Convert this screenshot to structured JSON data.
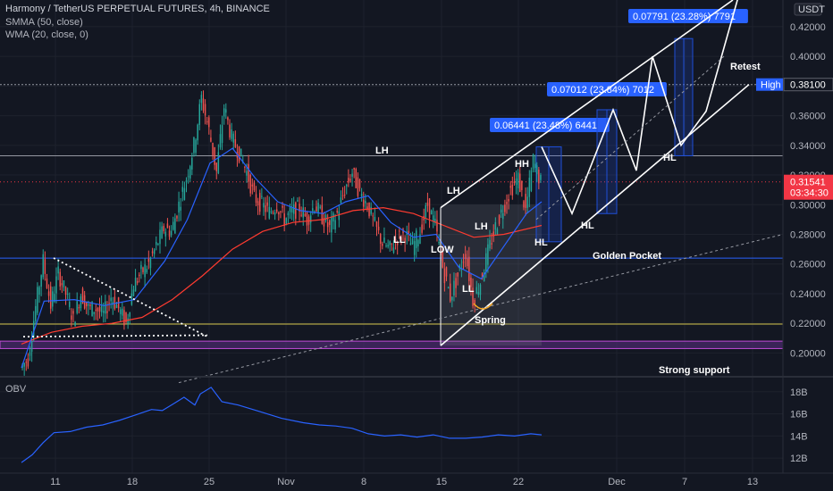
{
  "header": {
    "title": "Harmony / TetherUS PERPETUAL FUTURES, 4h, BINANCE",
    "indicator_1": "SMMA (50, close)",
    "indicator_2": "WMA (20, close, 0)",
    "currency": "USDT"
  },
  "obv_label": "OBV",
  "colors": {
    "background": "#131722",
    "up_candle": "#26a69a",
    "down_candle": "#ef5350",
    "smma": "#ff3b30",
    "wma": "#2962ff",
    "obv": "#2962ff",
    "price_marker": "#f23645",
    "high_marker": "#2962ff",
    "range_box": "#1f4fd8",
    "support_band": "#4a2a6b",
    "golden_pocket_line": "#2962ff",
    "yellow_line": "#d4c44a"
  },
  "chart_data": [
    {
      "type": "candlestick",
      "title": "Harmony / TetherUS PERPETUAL FUTURES, 4h, BINANCE",
      "y_axis_ticks": [
        0.2,
        0.22,
        0.24,
        0.26,
        0.28,
        0.3,
        0.32,
        0.34,
        0.36,
        0.38,
        0.4,
        0.42
      ],
      "ylim": [
        0.184,
        0.438
      ],
      "x_ticks": [
        "11",
        "18",
        "25",
        "Nov",
        "8",
        "15",
        "22",
        "Dec",
        "7",
        "13"
      ],
      "last_price": "0.31541",
      "countdown": "03:34:30",
      "high_label": "High",
      "high_price": "0.38100",
      "grid": true,
      "annotations": {
        "swing_labels": [
          "LH",
          "LL",
          "LH",
          "LOW",
          "LH",
          "LL",
          "HH",
          "HL",
          "Spring"
        ],
        "projection_labels": [
          "HL",
          "HL"
        ],
        "text_labels": [
          "Retest",
          "Golden Pocket",
          "Strong support"
        ],
        "measure_boxes": [
          "0.06441 (23.48%) 6441",
          "0.07012 (23.84%) 7012",
          "0.07791 (23.28%) 7791"
        ]
      },
      "levels": {
        "upper_grey_line": 0.333,
        "high_line": 0.381,
        "golden_pocket": 0.264,
        "yellow_line": 0.2195,
        "support_band": [
          0.203,
          0.208
        ]
      },
      "price_path": [
        [
          0,
          0.19
        ],
        [
          1,
          0.196
        ],
        [
          2,
          0.231
        ],
        [
          3,
          0.262
        ],
        [
          4,
          0.232
        ],
        [
          5,
          0.254
        ],
        [
          6,
          0.24
        ],
        [
          7,
          0.222
        ],
        [
          8,
          0.24
        ],
        [
          9,
          0.23
        ],
        [
          10,
          0.23
        ],
        [
          11,
          0.226
        ],
        [
          12,
          0.238
        ],
        [
          13,
          0.23
        ],
        [
          14,
          0.22
        ],
        [
          15,
          0.246
        ],
        [
          16,
          0.254
        ],
        [
          17,
          0.26
        ],
        [
          18,
          0.272
        ],
        [
          19,
          0.284
        ],
        [
          20,
          0.282
        ],
        [
          21,
          0.3
        ],
        [
          22,
          0.318
        ],
        [
          23,
          0.34
        ],
        [
          24,
          0.372
        ],
        [
          25,
          0.35
        ],
        [
          26,
          0.322
        ],
        [
          27,
          0.366
        ],
        [
          28,
          0.345
        ],
        [
          29,
          0.335
        ],
        [
          30,
          0.322
        ],
        [
          31,
          0.305
        ],
        [
          32,
          0.3
        ],
        [
          33,
          0.295
        ],
        [
          34,
          0.3
        ],
        [
          35,
          0.29
        ],
        [
          36,
          0.295
        ],
        [
          37,
          0.298
        ],
        [
          38,
          0.29
        ],
        [
          39,
          0.3
        ],
        [
          40,
          0.292
        ],
        [
          41,
          0.284
        ],
        [
          42,
          0.294
        ],
        [
          43,
          0.31
        ],
        [
          44,
          0.322
        ],
        [
          45,
          0.308
        ],
        [
          46,
          0.3
        ],
        [
          47,
          0.286
        ],
        [
          48,
          0.274
        ],
        [
          49,
          0.27
        ],
        [
          50,
          0.278
        ],
        [
          51,
          0.28
        ],
        [
          52,
          0.272
        ],
        [
          53,
          0.282
        ],
        [
          54,
          0.3
        ],
        [
          55,
          0.286
        ],
        [
          56,
          0.258
        ],
        [
          57,
          0.238
        ],
        [
          58,
          0.252
        ],
        [
          59,
          0.268
        ],
        [
          60,
          0.236
        ],
        [
          61,
          0.248
        ],
        [
          62,
          0.268
        ],
        [
          63,
          0.285
        ],
        [
          64,
          0.298
        ],
        [
          65,
          0.31
        ],
        [
          66,
          0.318
        ],
        [
          67,
          0.296
        ],
        [
          68,
          0.33
        ],
        [
          69,
          0.315
        ]
      ],
      "wma_path": [
        [
          0,
          0.19
        ],
        [
          3,
          0.235
        ],
        [
          7,
          0.236
        ],
        [
          11,
          0.232
        ],
        [
          15,
          0.236
        ],
        [
          19,
          0.262
        ],
        [
          22,
          0.29
        ],
        [
          25,
          0.328
        ],
        [
          28,
          0.338
        ],
        [
          31,
          0.318
        ],
        [
          34,
          0.302
        ],
        [
          37,
          0.296
        ],
        [
          40,
          0.294
        ],
        [
          43,
          0.302
        ],
        [
          46,
          0.306
        ],
        [
          49,
          0.288
        ],
        [
          52,
          0.278
        ],
        [
          55,
          0.28
        ],
        [
          58,
          0.258
        ],
        [
          61,
          0.25
        ],
        [
          64,
          0.272
        ],
        [
          67,
          0.294
        ],
        [
          69,
          0.302
        ]
      ],
      "smma_path": [
        [
          0,
          0.206
        ],
        [
          4,
          0.214
        ],
        [
          8,
          0.218
        ],
        [
          12,
          0.22
        ],
        [
          16,
          0.224
        ],
        [
          20,
          0.236
        ],
        [
          24,
          0.252
        ],
        [
          28,
          0.27
        ],
        [
          32,
          0.282
        ],
        [
          36,
          0.288
        ],
        [
          40,
          0.29
        ],
        [
          44,
          0.296
        ],
        [
          48,
          0.298
        ],
        [
          52,
          0.294
        ],
        [
          56,
          0.286
        ],
        [
          60,
          0.278
        ],
        [
          64,
          0.28
        ],
        [
          69,
          0.286
        ]
      ]
    },
    {
      "type": "line",
      "name": "OBV",
      "y_axis_ticks": [
        "12B",
        "14B",
        "16B",
        "18B"
      ],
      "ylim": [
        10.8,
        19.2
      ],
      "values": [
        [
          0,
          11.6
        ],
        [
          2,
          12.3
        ],
        [
          4,
          13.4
        ],
        [
          6,
          14.3
        ],
        [
          9,
          14.4
        ],
        [
          12,
          14.8
        ],
        [
          15,
          15.0
        ],
        [
          18,
          15.4
        ],
        [
          21,
          15.9
        ],
        [
          24,
          16.4
        ],
        [
          26,
          16.3
        ],
        [
          28,
          16.9
        ],
        [
          30,
          17.5
        ],
        [
          32,
          16.8
        ],
        [
          33,
          17.8
        ],
        [
          35,
          18.4
        ],
        [
          37,
          17.1
        ],
        [
          40,
          16.8
        ],
        [
          44,
          16.2
        ],
        [
          48,
          15.6
        ],
        [
          52,
          15.2
        ],
        [
          55,
          15.0
        ],
        [
          58,
          14.9
        ],
        [
          61,
          14.7
        ],
        [
          64,
          14.2
        ],
        [
          67,
          14.0
        ],
        [
          70,
          14.1
        ],
        [
          73,
          13.9
        ],
        [
          76,
          14.1
        ],
        [
          79,
          13.8
        ],
        [
          82,
          13.8
        ],
        [
          85,
          13.9
        ],
        [
          88,
          14.1
        ],
        [
          91,
          14.0
        ],
        [
          94,
          14.2
        ],
        [
          96,
          14.1
        ]
      ]
    }
  ]
}
